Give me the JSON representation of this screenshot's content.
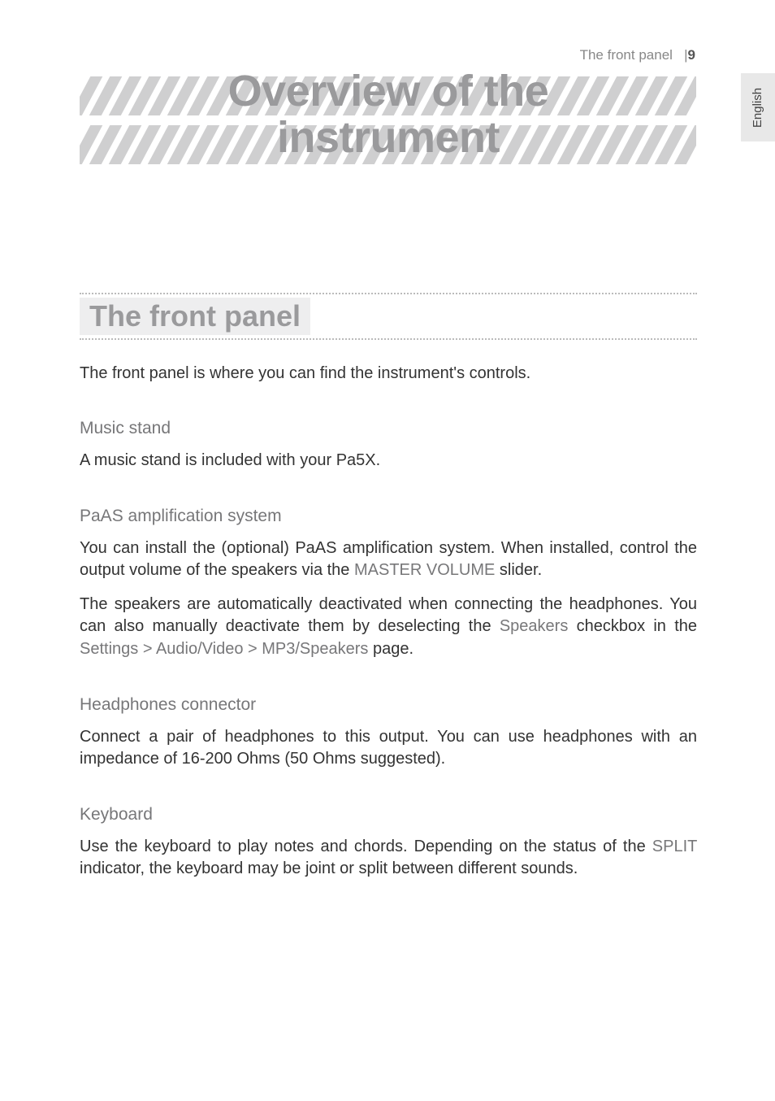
{
  "page": {
    "header_section": "The front panel",
    "header_separator": "|",
    "page_number": "9",
    "side_tab": "English"
  },
  "title": {
    "line1": "Overview of the",
    "line2": "instrument"
  },
  "section_heading": "The front panel",
  "intro": "The front panel is where you can find the instrument's controls.",
  "subsections": [
    {
      "title": "Music stand",
      "paragraphs": [
        {
          "parts": [
            {
              "t": "A music stand is included with your Pa5X."
            }
          ]
        }
      ]
    },
    {
      "title": "PaAS amplification system",
      "paragraphs": [
        {
          "parts": [
            {
              "t": "You can install the (optional) PaAS amplification system. When installed, control the output volume of the speakers via the "
            },
            {
              "t": "MASTER VOLUME",
              "ui": true
            },
            {
              "t": " slider."
            }
          ]
        },
        {
          "parts": [
            {
              "t": "The speakers are automatically deactivated when connecting the headphones. You can also manually deactivate them by deselecting the "
            },
            {
              "t": "Speakers",
              "ui": true
            },
            {
              "t": " checkbox in the "
            },
            {
              "t": "Settings > Audio/Video > MP3/Speakers",
              "ui": true
            },
            {
              "t": " page."
            }
          ]
        }
      ]
    },
    {
      "title": "Headphones connector",
      "paragraphs": [
        {
          "parts": [
            {
              "t": "Connect a pair of headphones to this output. You can use headphones with an impedance of 16-200 Ohms (50 Ohms suggested)."
            }
          ]
        }
      ]
    },
    {
      "title": "Keyboard",
      "paragraphs": [
        {
          "parts": [
            {
              "t": "Use the keyboard to play notes and chords. Depending on the status of the "
            },
            {
              "t": "SPLIT",
              "ui": true
            },
            {
              "t": " indicator, the keyboard may be joint or split between different sounds."
            }
          ]
        }
      ]
    }
  ],
  "style": {
    "page_bg": "#ffffff",
    "body_color": "#333333",
    "muted_color": "#888888",
    "title_color": "#9a9a9c",
    "subtitle_color": "#777779",
    "ui_ref_color": "#777779",
    "hatch_color": "#cfcfd0",
    "section_bg": "#eeeeef",
    "side_tab_bg": "#e8e8e8",
    "dotted_border": "#bbbbbb",
    "hatch_count": 32
  }
}
